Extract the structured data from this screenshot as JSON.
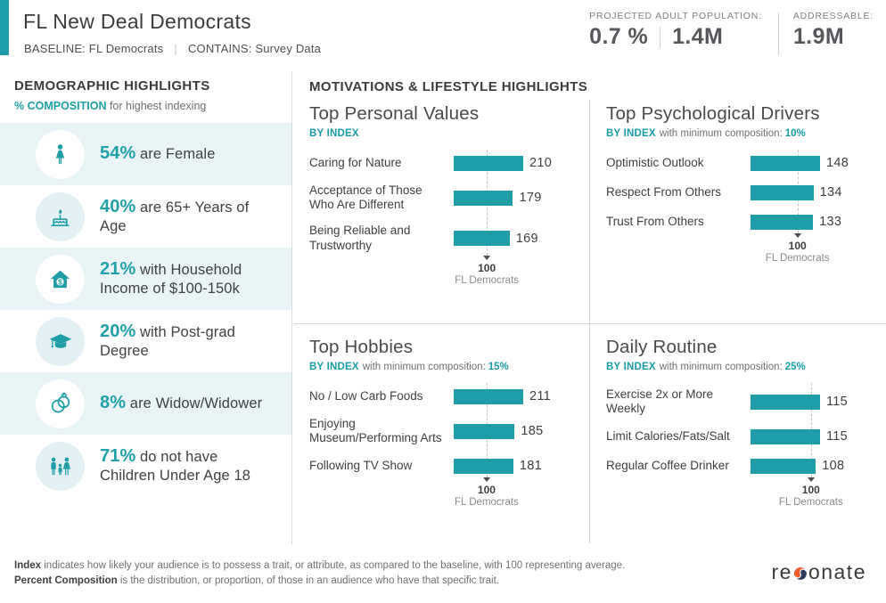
{
  "header": {
    "title": "FL New Deal Democrats",
    "baseline": "BASELINE: FL Democrats",
    "contains": "CONTAINS: Survey Data",
    "stats": [
      {
        "label": "PROJECTED ADULT POPULATION:",
        "values": [
          "0.7 %",
          "1.4M"
        ]
      },
      {
        "label": "ADDRESSABLE:",
        "values": [
          "1.9M"
        ]
      }
    ]
  },
  "sidebar": {
    "title": "DEMOGRAPHIC HIGHLIGHTS",
    "subtitle_highlight": "% COMPOSITION",
    "subtitle_rest": " for highest indexing",
    "items": [
      {
        "icon": "female-icon",
        "pct": "54%",
        "text": " are Female"
      },
      {
        "icon": "birthday-cake-icon",
        "pct": "40%",
        "text": " are 65+ Years of Age"
      },
      {
        "icon": "house-dollar-icon",
        "pct": "21%",
        "text": " with Household Income of $100-150k"
      },
      {
        "icon": "graduation-cap-icon",
        "pct": "20%",
        "text": " with Post-grad Degree"
      },
      {
        "icon": "wedding-rings-icon",
        "pct": "8%",
        "text": " are Widow/Widower"
      },
      {
        "icon": "family-icon",
        "pct": "71%",
        "text": " do not have Children Under Age 18"
      }
    ]
  },
  "main": {
    "title": "MOTIVATIONS & LIFESTYLE HIGHLIGHTS"
  },
  "chart_data": [
    {
      "type": "bar",
      "title": "Top Personal Values",
      "subtitle_index": "BY INDEX",
      "subtitle_note": "",
      "subtitle_value": "",
      "categories": [
        "Caring for Nature",
        "Acceptance of Those Who Are Different",
        "Being Reliable and Trustworthy"
      ],
      "values": [
        210,
        179,
        169
      ],
      "baseline": 100,
      "baseline_value": "100",
      "baseline_label": "FL Democrats",
      "bar_color": "#1F9EA7"
    },
    {
      "type": "bar",
      "title": "Top Psychological Drivers",
      "subtitle_index": "BY INDEX",
      "subtitle_note": "with minimum composition:",
      "subtitle_value": "10%",
      "categories": [
        "Optimistic Outlook",
        "Respect From Others",
        "Trust From Others"
      ],
      "values": [
        148,
        134,
        133
      ],
      "baseline": 100,
      "baseline_value": "100",
      "baseline_label": "FL Democrats",
      "bar_color": "#1F9EA7"
    },
    {
      "type": "bar",
      "title": "Top Hobbies",
      "subtitle_index": "BY INDEX",
      "subtitle_note": "with minimum composition:",
      "subtitle_value": "15%",
      "categories": [
        "No / Low Carb Foods",
        "Enjoying Museum/Performing Arts",
        "Following TV Show"
      ],
      "values": [
        211,
        185,
        181
      ],
      "baseline": 100,
      "baseline_value": "100",
      "baseline_label": "FL Democrats",
      "bar_color": "#1F9EA7"
    },
    {
      "type": "bar",
      "title": "Daily Routine",
      "subtitle_index": "BY INDEX",
      "subtitle_note": "with minimum composition:",
      "subtitle_value": "25%",
      "categories": [
        "Exercise 2x or More Weekly",
        "Limit Calories/Fats/Salt",
        "Regular Coffee Drinker"
      ],
      "values": [
        115,
        115,
        108
      ],
      "baseline": 100,
      "baseline_value": "100",
      "baseline_label": "FL Democrats",
      "bar_color": "#1F9EA7"
    }
  ],
  "footer": {
    "line1_term": "Index",
    "line1_text": " indicates how likely your audience is to possess a trait, or attribute, as compared to the baseline, with 100 representing average.",
    "line2_term": "Percent Composition",
    "line2_text": " is the distribution, or proportion, of those in an audience who have that specific trait.",
    "logo_pre": "re",
    "logo_post": "onate"
  },
  "colors": {
    "teal": "#1F9EA7",
    "light_row": "#E9F4F6",
    "dark_text": "#414141",
    "gray_text": "#6F7073",
    "divider": "#D6D6D6",
    "logo_orange": "#EE5B2B",
    "logo_navy": "#2C3E5D"
  }
}
